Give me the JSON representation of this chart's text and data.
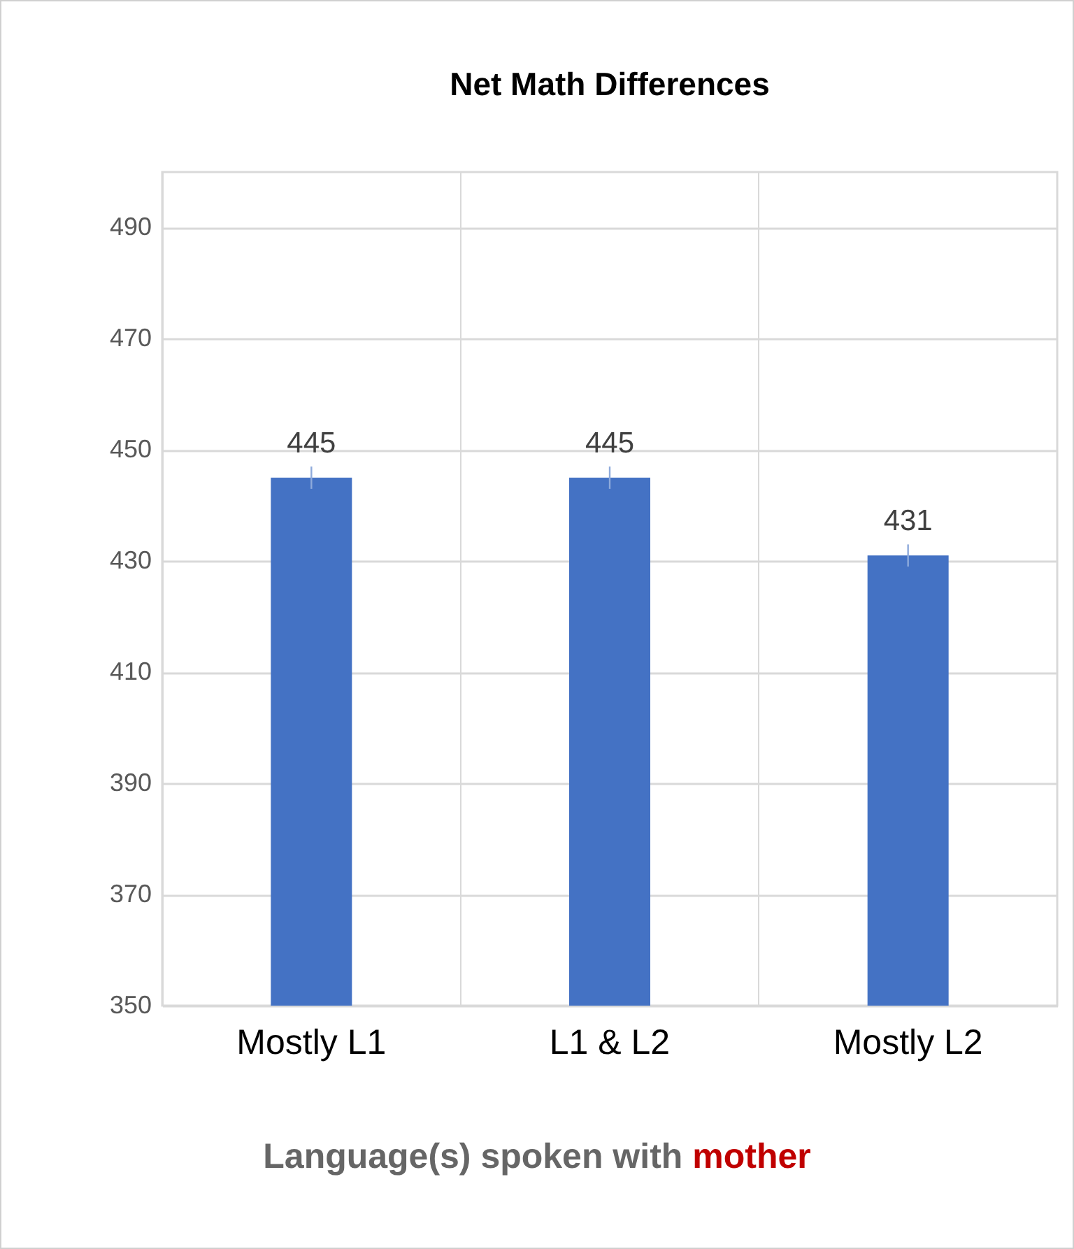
{
  "chart_data": {
    "type": "bar",
    "title": "Net Math Differences",
    "xlabel": "Language(s) spoken with mother",
    "categories": [
      "Mostly L1",
      "L1 & L2",
      "Mostly L2"
    ],
    "values": [
      445,
      445,
      431
    ],
    "errors": [
      2,
      2,
      2
    ],
    "color": "#4472c4",
    "ylim": [
      350,
      500
    ],
    "yticks": [
      350,
      370,
      390,
      410,
      430,
      450,
      470,
      490
    ],
    "grid": true,
    "data_labels": true
  }
}
